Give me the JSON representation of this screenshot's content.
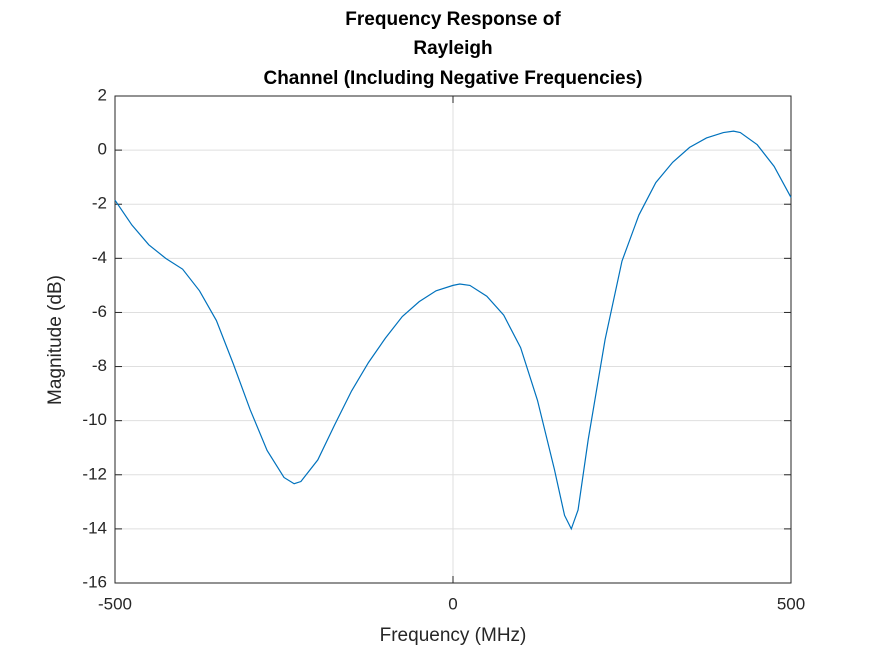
{
  "chart_data": {
    "type": "line",
    "title": [
      "Frequency Response of",
      "Rayleigh",
      "Channel (Including Negative Frequencies)"
    ],
    "xlabel": "Frequency (MHz)",
    "ylabel": "Magnitude (dB)",
    "x": [
      -500,
      -475,
      -450,
      -425,
      -400,
      -375,
      -350,
      -325,
      -300,
      -275,
      -250,
      -235,
      -225,
      -200,
      -175,
      -150,
      -125,
      -100,
      -75,
      -50,
      -25,
      0,
      10,
      25,
      50,
      75,
      100,
      125,
      150,
      165,
      175,
      185,
      200,
      225,
      250,
      275,
      300,
      325,
      350,
      375,
      400,
      415,
      425,
      450,
      475,
      500
    ],
    "series": [
      {
        "color": "#0072bd",
        "values": [
          -1.85,
          -2.77,
          -3.5,
          -4.0,
          -4.4,
          -5.2,
          -6.3,
          -7.9,
          -9.6,
          -11.1,
          -12.1,
          -12.33,
          -12.25,
          -11.45,
          -10.15,
          -8.9,
          -7.85,
          -6.95,
          -6.15,
          -5.6,
          -5.2,
          -5.0,
          -4.95,
          -5.0,
          -5.4,
          -6.1,
          -7.3,
          -9.25,
          -11.8,
          -13.5,
          -14.0,
          -13.3,
          -10.7,
          -7.0,
          -4.1,
          -2.4,
          -1.2,
          -0.45,
          0.1,
          0.45,
          0.65,
          0.7,
          0.65,
          0.2,
          -0.6,
          -1.75
        ]
      }
    ],
    "xlim": [
      -500,
      500
    ],
    "xticks": [
      -500,
      0,
      500
    ],
    "ylim": [
      -16,
      2
    ],
    "yticks": [
      -16,
      -14,
      -12,
      -10,
      -8,
      -6,
      -4,
      -2,
      0,
      2
    ],
    "grid": true
  }
}
